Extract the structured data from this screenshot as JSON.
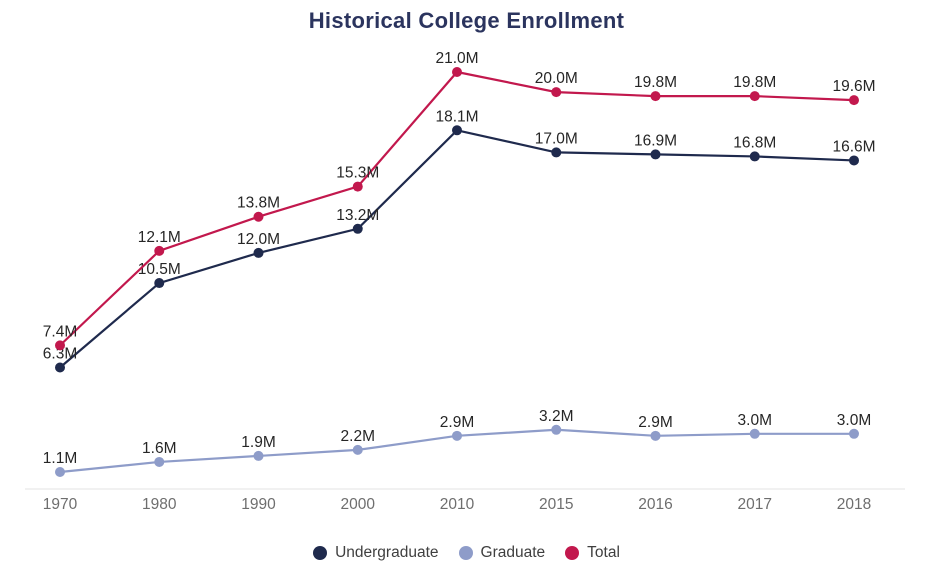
{
  "chart_data": {
    "type": "line",
    "title": "Historical College Enrollment",
    "categories": [
      "1970",
      "1980",
      "1990",
      "2000",
      "2010",
      "2015",
      "2016",
      "2017",
      "2018"
    ],
    "series": [
      {
        "name": "Undergraduate",
        "color": "#1f2a4d",
        "values": [
          6.3,
          10.5,
          12.0,
          13.2,
          18.1,
          17.0,
          16.9,
          16.8,
          16.6
        ]
      },
      {
        "name": "Graduate",
        "color": "#8e9cc9",
        "values": [
          1.1,
          1.6,
          1.9,
          2.2,
          2.9,
          3.2,
          2.9,
          3.0,
          3.0
        ]
      },
      {
        "name": "Total",
        "color": "#c2184d",
        "values": [
          7.4,
          12.1,
          13.8,
          15.3,
          21.0,
          20.0,
          19.8,
          19.8,
          19.6
        ]
      }
    ],
    "label_format": "{value}M",
    "xlabel": "",
    "ylabel": "",
    "ylim": [
      0,
      22
    ],
    "grid": false,
    "legend_position": "bottom",
    "data_labels": true
  },
  "colors": {
    "background": "#ffffff",
    "title_text": "#2b345e",
    "data_label_text": "#262626",
    "axis_tick_text": "#6e6e6e",
    "axis_line": "#e3e3e3",
    "legend_text": "#3f3f3f"
  }
}
